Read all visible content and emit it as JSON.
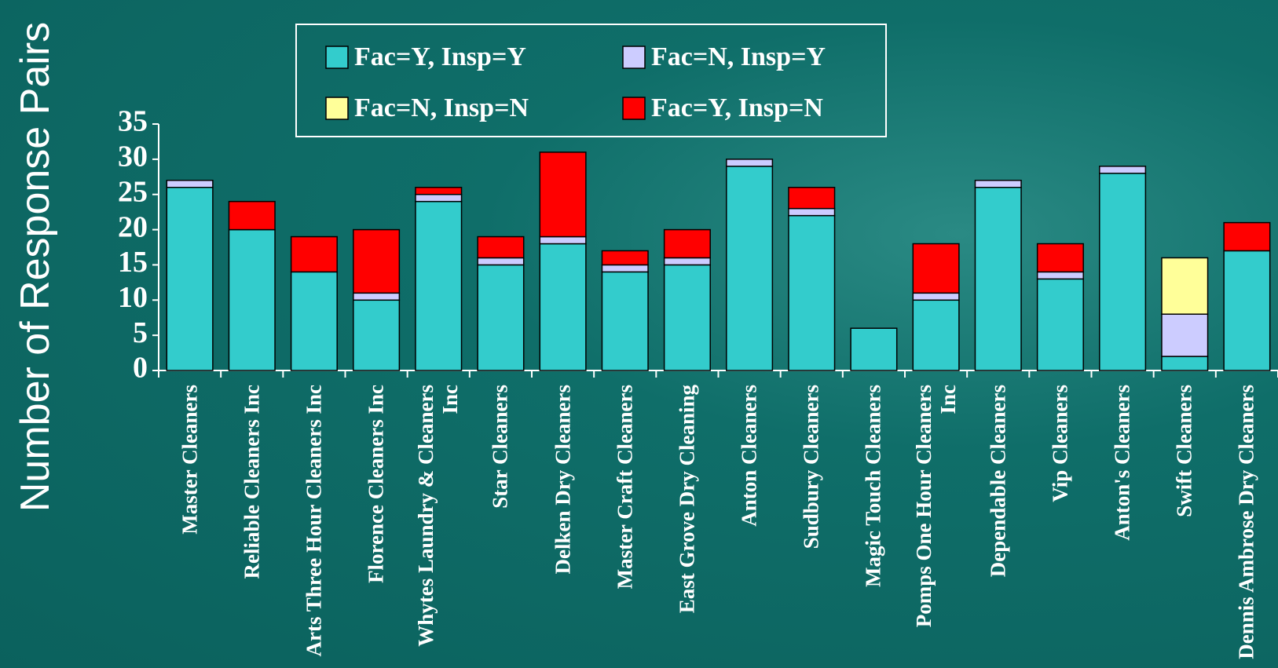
{
  "chart_data": {
    "type": "stacked_bar",
    "y_label": "Number of Response Pairs",
    "categories": [
      "Master Cleaners",
      "Reliable Cleaners Inc",
      "Arts Three Hour Cleaners Inc",
      "Florence Cleaners Inc",
      "Whytes Laundry & Cleaners Inc",
      "Star Cleaners",
      "Delken Dry Cleaners",
      "Master Craft Cleaners",
      "East Grove Dry Cleaning",
      "Anton Cleaners",
      "Sudbury Cleaners",
      "Magic Touch Cleaners",
      "Pomps One Hour Cleaners Inc",
      "Dependable Cleaners",
      "Vip Cleaners",
      "Anton's Cleaners",
      "Swift Cleaners",
      "Dennis Ambrose Dry Cleaners"
    ],
    "series": [
      {
        "name": "Fac=Y, Insp=Y",
        "color": "#33cccc",
        "values": [
          26,
          20,
          14,
          10,
          24,
          15,
          18,
          14,
          15,
          29,
          22,
          6,
          10,
          26,
          13,
          28,
          2,
          17
        ]
      },
      {
        "name": "Fac=N, Insp=Y",
        "color": "#ccccff",
        "values": [
          1,
          0,
          0,
          1,
          1,
          1,
          1,
          1,
          1,
          1,
          1,
          0,
          1,
          1,
          1,
          1,
          6,
          0
        ]
      },
      {
        "name": "Fac=N, Insp=N",
        "color": "#ffff99",
        "values": [
          0,
          0,
          0,
          0,
          0,
          0,
          0,
          0,
          0,
          0,
          0,
          0,
          0,
          0,
          0,
          0,
          8,
          0
        ]
      },
      {
        "name": "Fac=Y, Insp=N",
        "color": "#ff0000",
        "values": [
          0,
          4,
          5,
          9,
          1,
          3,
          12,
          2,
          4,
          0,
          3,
          0,
          7,
          0,
          4,
          0,
          0,
          4
        ]
      }
    ],
    "ylim": [
      0,
      35
    ],
    "yticks": [
      0,
      5,
      10,
      15,
      20,
      25,
      30,
      35
    ]
  }
}
